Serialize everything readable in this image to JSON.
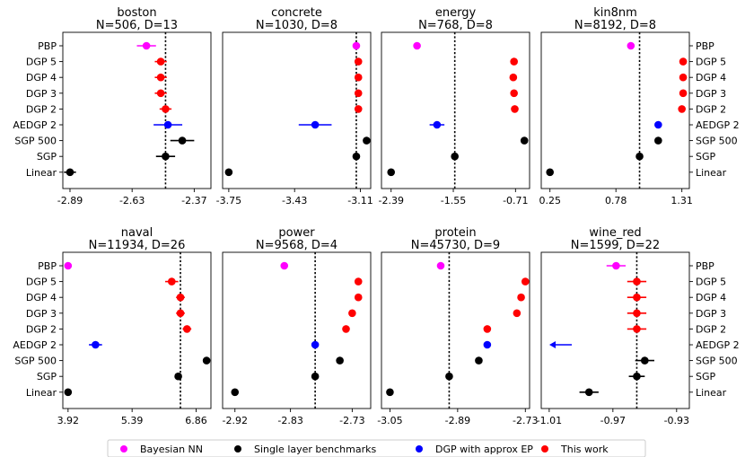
{
  "method_labels": [
    "PBP",
    "DGP 5",
    "DGP 4",
    "DGP 3",
    "DGP 2",
    "AEDGP 2",
    "SGP 500",
    "SGP",
    "Linear"
  ],
  "colors": {
    "bnn": "#ff00ff",
    "single": "#000000",
    "dgp_ep": "#0000ff",
    "this_work": "#ff0000"
  },
  "legend": [
    {
      "label": "Bayesian NN",
      "color_key": "bnn"
    },
    {
      "label": "Single layer benchmarks",
      "color_key": "single"
    },
    {
      "label": "DGP with approx EP",
      "color_key": "dgp_ep"
    },
    {
      "label": "This work",
      "color_key": "this_work"
    }
  ],
  "chart_data": [
    {
      "type": "scatter",
      "dataset": "boston",
      "title": "boston",
      "subtitle": "N=506, D=13",
      "xlim": [
        -2.92,
        -2.3
      ],
      "xticks": [
        -2.89,
        -2.63,
        -2.37
      ],
      "xtick_labels": [
        "-2.89",
        "-2.63",
        "-2.37"
      ],
      "reference_x": -2.49,
      "points": [
        {
          "label": "PBP",
          "value": -2.57,
          "err": 0.04,
          "color_key": "bnn"
        },
        {
          "label": "DGP 5",
          "value": -2.51,
          "err": 0.025,
          "color_key": "this_work"
        },
        {
          "label": "DGP 4",
          "value": -2.51,
          "err": 0.025,
          "color_key": "this_work"
        },
        {
          "label": "DGP 3",
          "value": -2.51,
          "err": 0.025,
          "color_key": "this_work"
        },
        {
          "label": "DGP 2",
          "value": -2.49,
          "err": 0.025,
          "color_key": "this_work"
        },
        {
          "label": "AEDGP 2",
          "value": -2.48,
          "err": 0.06,
          "color_key": "dgp_ep"
        },
        {
          "label": "SGP 500",
          "value": -2.42,
          "err": 0.05,
          "color_key": "single"
        },
        {
          "label": "SGP",
          "value": -2.49,
          "err": 0.04,
          "color_key": "single"
        },
        {
          "label": "Linear",
          "value": -2.89,
          "err": 0.025,
          "color_key": "single"
        }
      ]
    },
    {
      "type": "scatter",
      "dataset": "concrete",
      "title": "concrete",
      "subtitle": "N=1030, D=8",
      "xlim": [
        -3.78,
        -3.06
      ],
      "xticks": [
        -3.75,
        -3.43,
        -3.11
      ],
      "xtick_labels": [
        "-3.75",
        "-3.43",
        "-3.11"
      ],
      "reference_x": -3.13,
      "points": [
        {
          "label": "PBP",
          "value": -3.13,
          "err": 0.0,
          "color_key": "bnn"
        },
        {
          "label": "DGP 5",
          "value": -3.12,
          "err": 0.01,
          "color_key": "this_work"
        },
        {
          "label": "DGP 4",
          "value": -3.12,
          "err": 0.01,
          "color_key": "this_work"
        },
        {
          "label": "DGP 3",
          "value": -3.12,
          "err": 0.01,
          "color_key": "this_work"
        },
        {
          "label": "DGP 2",
          "value": -3.12,
          "err": 0.01,
          "color_key": "this_work"
        },
        {
          "label": "AEDGP 2",
          "value": -3.33,
          "err": 0.08,
          "color_key": "dgp_ep"
        },
        {
          "label": "SGP 500",
          "value": -3.08,
          "err": 0.01,
          "color_key": "single"
        },
        {
          "label": "SGP",
          "value": -3.13,
          "err": 0.0,
          "color_key": "single"
        },
        {
          "label": "Linear",
          "value": -3.75,
          "err": 0.0,
          "color_key": "single"
        }
      ]
    },
    {
      "type": "scatter",
      "dataset": "energy",
      "title": "energy",
      "subtitle": "N=768, D=8",
      "xlim": [
        -2.52,
        -0.52
      ],
      "xticks": [
        -2.39,
        -1.55,
        -0.71
      ],
      "xtick_labels": [
        "-2.39",
        "-1.55",
        "-0.71"
      ],
      "reference_x": -1.53,
      "points": [
        {
          "label": "PBP",
          "value": -2.04,
          "err": 0.0,
          "color_key": "bnn"
        },
        {
          "label": "DGP 5",
          "value": -0.73,
          "err": 0.0,
          "color_key": "this_work"
        },
        {
          "label": "DGP 4",
          "value": -0.74,
          "err": 0.0,
          "color_key": "this_work"
        },
        {
          "label": "DGP 3",
          "value": -0.73,
          "err": 0.0,
          "color_key": "this_work"
        },
        {
          "label": "DGP 2",
          "value": -0.72,
          "err": 0.0,
          "color_key": "this_work"
        },
        {
          "label": "AEDGP 2",
          "value": -1.77,
          "err": 0.1,
          "color_key": "dgp_ep"
        },
        {
          "label": "SGP 500",
          "value": -0.59,
          "err": 0.0,
          "color_key": "single"
        },
        {
          "label": "SGP",
          "value": -1.53,
          "err": 0.0,
          "color_key": "single"
        },
        {
          "label": "Linear",
          "value": -2.39,
          "err": 0.0,
          "color_key": "single"
        }
      ]
    },
    {
      "type": "scatter",
      "dataset": "kin8nm",
      "title": "kin8nm",
      "subtitle": "N=8192, D=8",
      "xlim": [
        0.18,
        1.37
      ],
      "xticks": [
        0.25,
        0.78,
        1.31
      ],
      "xtick_labels": [
        "0.25",
        "0.78",
        "1.31"
      ],
      "reference_x": 0.97,
      "points": [
        {
          "label": "PBP",
          "value": 0.9,
          "err": 0.0,
          "color_key": "bnn"
        },
        {
          "label": "DGP 5",
          "value": 1.32,
          "err": 0.0,
          "color_key": "this_work"
        },
        {
          "label": "DGP 4",
          "value": 1.32,
          "err": 0.0,
          "color_key": "this_work"
        },
        {
          "label": "DGP 3",
          "value": 1.32,
          "err": 0.0,
          "color_key": "this_work"
        },
        {
          "label": "DGP 2",
          "value": 1.31,
          "err": 0.0,
          "color_key": "this_work"
        },
        {
          "label": "AEDGP 2",
          "value": 1.12,
          "err": 0.0,
          "color_key": "dgp_ep"
        },
        {
          "label": "SGP 500",
          "value": 1.12,
          "err": 0.0,
          "color_key": "single"
        },
        {
          "label": "SGP",
          "value": 0.97,
          "err": 0.0,
          "color_key": "single"
        },
        {
          "label": "Linear",
          "value": 0.25,
          "err": 0.0,
          "color_key": "single"
        }
      ]
    },
    {
      "type": "scatter",
      "dataset": "naval",
      "title": "naval",
      "subtitle": "N=11934, D=26",
      "xlim": [
        3.8,
        7.2
      ],
      "xticks": [
        3.92,
        5.39,
        6.86
      ],
      "xtick_labels": [
        "3.92",
        "5.39",
        "6.86"
      ],
      "reference_x": 6.5,
      "points": [
        {
          "label": "PBP",
          "value": 3.92,
          "err": 0.0,
          "color_key": "bnn"
        },
        {
          "label": "DGP 5",
          "value": 6.3,
          "err": 0.15,
          "color_key": "this_work"
        },
        {
          "label": "DGP 4",
          "value": 6.5,
          "err": 0.1,
          "color_key": "this_work"
        },
        {
          "label": "DGP 3",
          "value": 6.5,
          "err": 0.1,
          "color_key": "this_work"
        },
        {
          "label": "DGP 2",
          "value": 6.65,
          "err": 0.1,
          "color_key": "this_work"
        },
        {
          "label": "AEDGP 2",
          "value": 4.55,
          "err": 0.15,
          "color_key": "dgp_ep"
        },
        {
          "label": "SGP 500",
          "value": 7.1,
          "err": 0.0,
          "color_key": "single"
        },
        {
          "label": "SGP",
          "value": 6.45,
          "err": 0.05,
          "color_key": "single"
        },
        {
          "label": "Linear",
          "value": 3.92,
          "err": 0.0,
          "color_key": "single"
        }
      ]
    },
    {
      "type": "scatter",
      "dataset": "power",
      "title": "power",
      "subtitle": "N=9568, D=4",
      "xlim": [
        -2.94,
        -2.7
      ],
      "xticks": [
        -2.92,
        -2.83,
        -2.73
      ],
      "xtick_labels": [
        "-2.92",
        "-2.83",
        "-2.73"
      ],
      "reference_x": -2.79,
      "points": [
        {
          "label": "PBP",
          "value": -2.84,
          "err": 0.003,
          "color_key": "bnn"
        },
        {
          "label": "DGP 5",
          "value": -2.72,
          "err": 0.004,
          "color_key": "this_work"
        },
        {
          "label": "DGP 4",
          "value": -2.72,
          "err": 0.004,
          "color_key": "this_work"
        },
        {
          "label": "DGP 3",
          "value": -2.73,
          "err": 0.004,
          "color_key": "this_work"
        },
        {
          "label": "DGP 2",
          "value": -2.74,
          "err": 0.004,
          "color_key": "this_work"
        },
        {
          "label": "AEDGP 2",
          "value": -2.79,
          "err": 0.004,
          "color_key": "dgp_ep"
        },
        {
          "label": "SGP 500",
          "value": -2.75,
          "err": 0.004,
          "color_key": "single"
        },
        {
          "label": "SGP",
          "value": -2.79,
          "err": 0.003,
          "color_key": "single"
        },
        {
          "label": "Linear",
          "value": -2.92,
          "err": 0.0,
          "color_key": "single"
        }
      ]
    },
    {
      "type": "scatter",
      "dataset": "protein",
      "title": "protein",
      "subtitle": "N=45730, D=9",
      "xlim": [
        -3.07,
        -2.72
      ],
      "xticks": [
        -3.05,
        -2.89,
        -2.73
      ],
      "xtick_labels": [
        "-3.05",
        "-2.89",
        "-2.73"
      ],
      "reference_x": -2.91,
      "points": [
        {
          "label": "PBP",
          "value": -2.93,
          "err": 0.0,
          "color_key": "bnn"
        },
        {
          "label": "DGP 5",
          "value": -2.73,
          "err": 0.0,
          "color_key": "this_work"
        },
        {
          "label": "DGP 4",
          "value": -2.74,
          "err": 0.0,
          "color_key": "this_work"
        },
        {
          "label": "DGP 3",
          "value": -2.75,
          "err": 0.0,
          "color_key": "this_work"
        },
        {
          "label": "DGP 2",
          "value": -2.82,
          "err": 0.0,
          "color_key": "this_work"
        },
        {
          "label": "AEDGP 2",
          "value": -2.82,
          "err": 0.0,
          "color_key": "dgp_ep"
        },
        {
          "label": "SGP 500",
          "value": -2.84,
          "err": 0.0,
          "color_key": "single"
        },
        {
          "label": "SGP",
          "value": -2.91,
          "err": 0.0,
          "color_key": "single"
        },
        {
          "label": "Linear",
          "value": -3.05,
          "err": 0.0,
          "color_key": "single"
        }
      ]
    },
    {
      "type": "scatter",
      "dataset": "wine_red",
      "title": "wine_red",
      "subtitle": "N=1599, D=22",
      "xlim": [
        -1.015,
        -0.922
      ],
      "xticks": [
        -1.01,
        -0.97,
        -0.93
      ],
      "xtick_labels": [
        "-1.01",
        "-0.97",
        "-0.93"
      ],
      "reference_x": -0.955,
      "offscale_arrow": {
        "label": "AEDGP 2",
        "direction": "left",
        "color_key": "dgp_ep"
      },
      "points": [
        {
          "label": "PBP",
          "value": -0.968,
          "err": 0.006,
          "color_key": "bnn"
        },
        {
          "label": "DGP 5",
          "value": -0.955,
          "err": 0.006,
          "color_key": "this_work"
        },
        {
          "label": "DGP 4",
          "value": -0.955,
          "err": 0.006,
          "color_key": "this_work"
        },
        {
          "label": "DGP 3",
          "value": -0.955,
          "err": 0.006,
          "color_key": "this_work"
        },
        {
          "label": "DGP 2",
          "value": -0.955,
          "err": 0.006,
          "color_key": "this_work"
        },
        {
          "label": "SGP 500",
          "value": -0.95,
          "err": 0.006,
          "color_key": "single"
        },
        {
          "label": "SGP",
          "value": -0.955,
          "err": 0.005,
          "color_key": "single"
        },
        {
          "label": "Linear",
          "value": -0.985,
          "err": 0.006,
          "color_key": "single"
        }
      ]
    }
  ]
}
